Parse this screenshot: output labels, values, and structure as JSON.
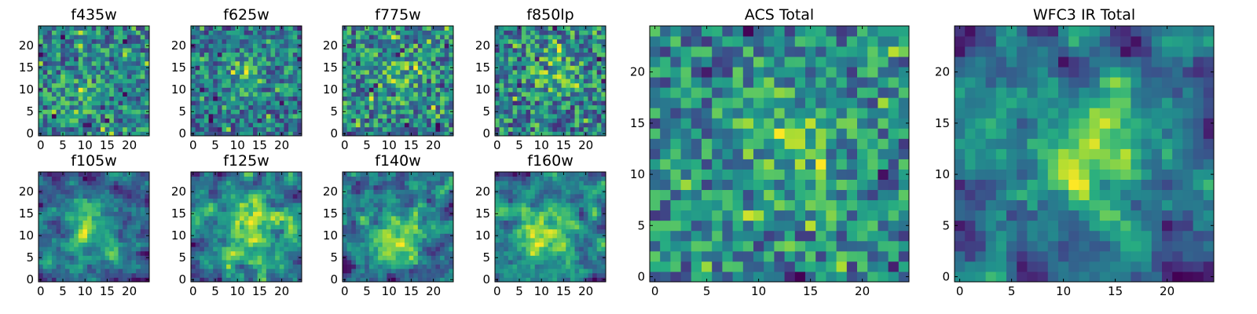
{
  "chart_data": [
    {
      "type": "heatmap",
      "title": "f435w",
      "xticks": [
        "0",
        "5",
        "10",
        "15",
        "20"
      ],
      "yticks": [
        "0",
        "5",
        "10",
        "15",
        "20"
      ],
      "grid_size": 25,
      "seed": 11,
      "blob": {
        "x": 10,
        "y": 8,
        "sigma": 3.0,
        "amp": 0.2
      },
      "noise": 0.45,
      "base": 0.55,
      "colormap": "viridis"
    },
    {
      "type": "heatmap",
      "title": "f625w",
      "xticks": [
        "0",
        "5",
        "10",
        "15",
        "20"
      ],
      "yticks": [
        "0",
        "5",
        "10",
        "15",
        "20"
      ],
      "grid_size": 25,
      "seed": 23,
      "blob": {
        "x": 11,
        "y": 13,
        "sigma": 4.0,
        "amp": 0.25
      },
      "noise": 0.45,
      "base": 0.55,
      "colormap": "viridis"
    },
    {
      "type": "heatmap",
      "title": "f775w",
      "xticks": [
        "0",
        "5",
        "10",
        "15",
        "20"
      ],
      "yticks": [
        "0",
        "5",
        "10",
        "15",
        "20"
      ],
      "grid_size": 25,
      "seed": 37,
      "blob": {
        "x": 12,
        "y": 13,
        "sigma": 4.0,
        "amp": 0.28
      },
      "noise": 0.45,
      "base": 0.55,
      "colormap": "viridis"
    },
    {
      "type": "heatmap",
      "title": "f850lp",
      "xticks": [
        "0",
        "5",
        "10",
        "15",
        "20"
      ],
      "yticks": [
        "0",
        "5",
        "10",
        "15",
        "20"
      ],
      "grid_size": 25,
      "seed": 41,
      "blob": {
        "x": 13,
        "y": 14,
        "sigma": 4.0,
        "amp": 0.28
      },
      "noise": 0.45,
      "base": 0.55,
      "colormap": "viridis"
    },
    {
      "type": "heatmap",
      "title": "f105w",
      "xticks": [
        "0",
        "5",
        "10",
        "15",
        "20"
      ],
      "yticks": [
        "0",
        "5",
        "10",
        "15",
        "20"
      ],
      "grid_size": 25,
      "seed": 53,
      "blob": {
        "x": 12,
        "y": 11,
        "sigma": 5.0,
        "amp": 0.3
      },
      "noise": 0.4,
      "base": 0.55,
      "colormap": "viridis",
      "smooth": true
    },
    {
      "type": "heatmap",
      "title": "f125w",
      "xticks": [
        "0",
        "5",
        "10",
        "15",
        "20"
      ],
      "yticks": [
        "0",
        "5",
        "10",
        "15",
        "20"
      ],
      "grid_size": 25,
      "seed": 67,
      "blob": {
        "x": 13,
        "y": 12,
        "sigma": 5.0,
        "amp": 0.32
      },
      "noise": 0.4,
      "base": 0.55,
      "colormap": "viridis",
      "smooth": true
    },
    {
      "type": "heatmap",
      "title": "f140w",
      "xticks": [
        "0",
        "5",
        "10",
        "15",
        "20"
      ],
      "yticks": [
        "0",
        "5",
        "10",
        "15",
        "20"
      ],
      "grid_size": 25,
      "seed": 79,
      "blob": {
        "x": 11,
        "y": 10,
        "sigma": 5.0,
        "amp": 0.32
      },
      "noise": 0.4,
      "base": 0.55,
      "colormap": "viridis",
      "smooth": true
    },
    {
      "type": "heatmap",
      "title": "f160w",
      "xticks": [
        "0",
        "5",
        "10",
        "15",
        "20"
      ],
      "yticks": [
        "0",
        "5",
        "10",
        "15",
        "20"
      ],
      "grid_size": 25,
      "seed": 83,
      "blob": {
        "x": 10,
        "y": 10,
        "sigma": 4.5,
        "amp": 0.35
      },
      "noise": 0.4,
      "base": 0.55,
      "colormap": "viridis",
      "smooth": true
    },
    {
      "type": "heatmap",
      "title": "ACS Total",
      "xticks": [
        "0",
        "5",
        "10",
        "15",
        "20"
      ],
      "yticks": [
        "0",
        "5",
        "10",
        "15",
        "20"
      ],
      "grid_size": 25,
      "seed": 97,
      "blob": {
        "x": 13,
        "y": 13,
        "sigma": 4.0,
        "amp": 0.3
      },
      "noise": 0.42,
      "base": 0.55,
      "colormap": "viridis"
    },
    {
      "type": "heatmap",
      "title": "WFC3 IR Total",
      "xticks": [
        "0",
        "5",
        "10",
        "15",
        "20"
      ],
      "yticks": [
        "0",
        "5",
        "10",
        "15",
        "20"
      ],
      "grid_size": 25,
      "seed": 101,
      "blob": {
        "x": 12,
        "y": 12,
        "sigma": 5.0,
        "amp": 0.38
      },
      "noise": 0.38,
      "base": 0.55,
      "colormap": "viridis",
      "smooth": true
    }
  ]
}
